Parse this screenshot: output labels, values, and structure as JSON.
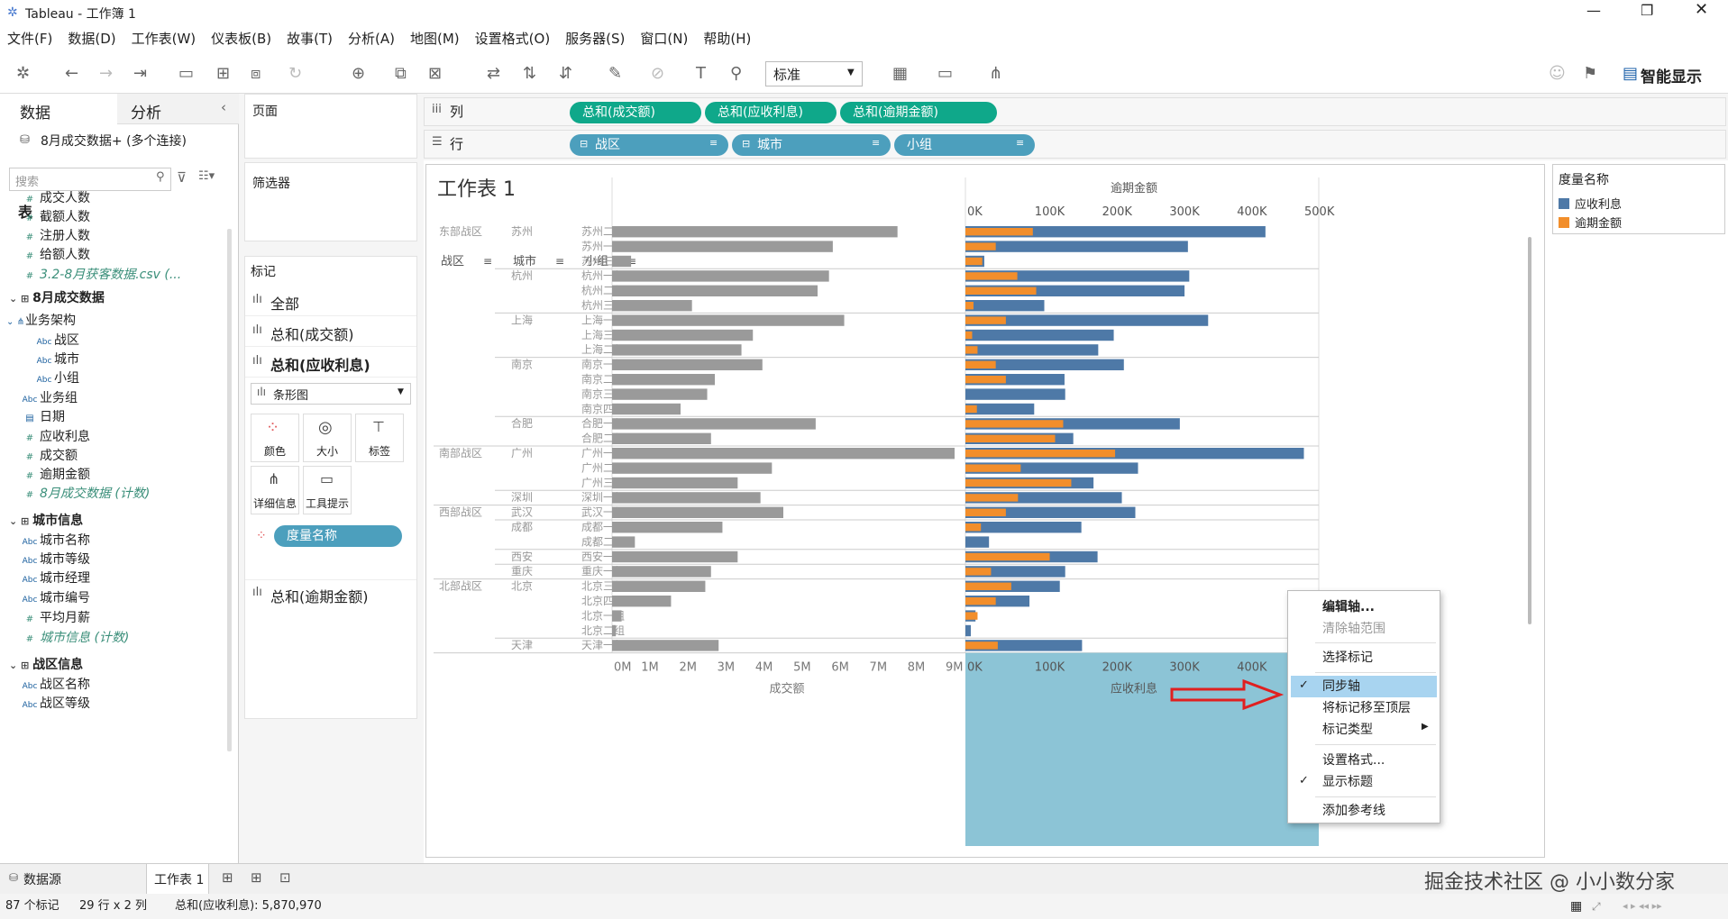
{
  "window": {
    "title": "Tableau - 工作簿 1"
  },
  "menu": [
    "文件(F)",
    "数据(D)",
    "工作表(W)",
    "仪表板(B)",
    "故事(T)",
    "分析(A)",
    "地图(M)",
    "设置格式(O)",
    "服务器(S)",
    "窗口(N)",
    "帮助(H)"
  ],
  "toolbar": {
    "fit_value": "标准",
    "show_me_label": "智能显示"
  },
  "left": {
    "tab_data": "数据",
    "tab_analysis": "分析",
    "connection": "8月成交数据+ (多个连接)",
    "search_placeholder": "搜索",
    "tables_header": "表",
    "fields": [
      {
        "label": "成交人数",
        "type": "measure",
        "indent": 44
      },
      {
        "label": "截额人数",
        "type": "measure",
        "indent": 44
      },
      {
        "label": "注册人数",
        "type": "measure",
        "indent": 44
      },
      {
        "label": "给额人数",
        "type": "measure",
        "indent": 44
      },
      {
        "label": "3.2-8月获客数据.csv (...",
        "type": "measure-italic",
        "indent": 44
      },
      {
        "label": "8月成交数据",
        "type": "section",
        "indent": 10
      },
      {
        "label": "业务架构",
        "type": "hier",
        "indent": 28
      },
      {
        "label": "战区",
        "type": "dim",
        "indent": 60
      },
      {
        "label": "城市",
        "type": "dim",
        "indent": 60
      },
      {
        "label": "小组",
        "type": "dim",
        "indent": 60
      },
      {
        "label": "业务组",
        "type": "dim",
        "indent": 44
      },
      {
        "label": "日期",
        "type": "date",
        "indent": 44
      },
      {
        "label": "应收利息",
        "type": "measure",
        "indent": 44
      },
      {
        "label": "成交额",
        "type": "measure",
        "indent": 44
      },
      {
        "label": "逾期金额",
        "type": "measure",
        "indent": 44
      },
      {
        "label": "8月成交数据 (计数)",
        "type": "measure-italic",
        "indent": 44
      },
      {
        "label": "城市信息",
        "type": "section",
        "indent": 10
      },
      {
        "label": "城市名称",
        "type": "dim",
        "indent": 44
      },
      {
        "label": "城市等级",
        "type": "dim",
        "indent": 44
      },
      {
        "label": "城市经理",
        "type": "dim",
        "indent": 44
      },
      {
        "label": "城市编号",
        "type": "dim",
        "indent": 44
      },
      {
        "label": "平均月薪",
        "type": "measure",
        "indent": 44
      },
      {
        "label": "城市信息 (计数)",
        "type": "measure-italic",
        "indent": 44
      },
      {
        "label": "战区信息",
        "type": "section",
        "indent": 10
      },
      {
        "label": "战区名称",
        "type": "dim",
        "indent": 44
      },
      {
        "label": "战区等级",
        "type": "dim",
        "indent": 44
      }
    ]
  },
  "cards": {
    "pages": "页面",
    "filters": "筛选器",
    "marks": "标记",
    "marks_all": "全部",
    "marks_m1": "总和(成交额)",
    "marks_m2": "总和(应收利息)",
    "marks_m3": "总和(逾期金额)",
    "mark_type": "条形图",
    "btn_color": "颜色",
    "btn_size": "大小",
    "btn_label": "标签",
    "btn_detail": "详细信息",
    "btn_tooltip": "工具提示",
    "measure_names_pill": "度量名称"
  },
  "shelves": {
    "columns_label": "列",
    "rows_label": "行",
    "columns": [
      "总和(成交额)",
      "总和(应收利息)",
      "总和(逾期金额)"
    ],
    "rows": [
      "战区",
      "城市",
      "小组"
    ]
  },
  "view": {
    "title": "工作表 1",
    "header_region": "战区",
    "header_city": "城市",
    "header_group": "小组"
  },
  "chart_data": {
    "type": "bar",
    "title": "工作表 1",
    "colors": {
      "gray": "#9a9a9a",
      "interest": "#4e79a7",
      "overdue": "#f28e2b"
    },
    "left_axis": {
      "label": "成交额",
      "ticks": [
        "0M",
        "1M",
        "2M",
        "3M",
        "4M",
        "5M",
        "6M",
        "7M",
        "8M",
        "9M"
      ],
      "range": [
        0,
        9
      ]
    },
    "right_axis": {
      "label": "应收利息",
      "top_label": "逾期金额",
      "ticks": [
        "0K",
        "100K",
        "200K",
        "300K",
        "400K",
        "500K"
      ],
      "range": [
        0,
        500
      ]
    },
    "rows": [
      {
        "region": "东部战区",
        "city": "苏州",
        "group": "苏州二组",
        "deal": 7.5,
        "interest": 445,
        "overdue": 100
      },
      {
        "region": "",
        "city": "",
        "group": "苏州一组",
        "deal": 5.8,
        "interest": 330,
        "overdue": 45
      },
      {
        "region": "",
        "city": "",
        "group": "苏州三组",
        "deal": 0.5,
        "interest": 28,
        "overdue": 25
      },
      {
        "region": "",
        "city": "杭州",
        "group": "杭州一组",
        "deal": 5.7,
        "interest": 332,
        "overdue": 77
      },
      {
        "region": "",
        "city": "",
        "group": "杭州二组",
        "deal": 5.4,
        "interest": 325,
        "overdue": 105
      },
      {
        "region": "",
        "city": "",
        "group": "杭州三组",
        "deal": 2.1,
        "interest": 117,
        "overdue": 12
      },
      {
        "region": "",
        "city": "上海",
        "group": "上海一组",
        "deal": 6.1,
        "interest": 360,
        "overdue": 60
      },
      {
        "region": "",
        "city": "",
        "group": "上海三组",
        "deal": 3.7,
        "interest": 220,
        "overdue": 10
      },
      {
        "region": "",
        "city": "",
        "group": "上海二组",
        "deal": 3.4,
        "interest": 197,
        "overdue": 18
      },
      {
        "region": "",
        "city": "南京",
        "group": "南京一组",
        "deal": 3.95,
        "interest": 235,
        "overdue": 45
      },
      {
        "region": "",
        "city": "",
        "group": "南京二组",
        "deal": 2.7,
        "interest": 147,
        "overdue": 60
      },
      {
        "region": "",
        "city": "",
        "group": "南京三组",
        "deal": 2.5,
        "interest": 148,
        "overdue": 0
      },
      {
        "region": "",
        "city": "",
        "group": "南京四组",
        "deal": 1.8,
        "interest": 102,
        "overdue": 17
      },
      {
        "region": "",
        "city": "合肥",
        "group": "合肥一组",
        "deal": 5.35,
        "interest": 318,
        "overdue": 145
      },
      {
        "region": "",
        "city": "",
        "group": "合肥二组",
        "deal": 2.6,
        "interest": 160,
        "overdue": 133
      },
      {
        "region": "南部战区",
        "city": "广州",
        "group": "广州一组",
        "deal": 9.0,
        "interest": 502,
        "overdue": 222
      },
      {
        "region": "",
        "city": "",
        "group": "广州二组",
        "deal": 4.2,
        "interest": 256,
        "overdue": 82
      },
      {
        "region": "",
        "city": "",
        "group": "广州三组",
        "deal": 3.3,
        "interest": 190,
        "overdue": 157
      },
      {
        "region": "",
        "city": "深圳",
        "group": "深圳一组",
        "deal": 3.9,
        "interest": 232,
        "overdue": 78
      },
      {
        "region": "西部战区",
        "city": "武汉",
        "group": "武汉一组",
        "deal": 4.5,
        "interest": 252,
        "overdue": 60
      },
      {
        "region": "",
        "city": "成都",
        "group": "成都一组",
        "deal": 2.9,
        "interest": 172,
        "overdue": 23
      },
      {
        "region": "",
        "city": "",
        "group": "成都二组",
        "deal": 0.6,
        "interest": 35,
        "overdue": 0
      },
      {
        "region": "",
        "city": "西安",
        "group": "西安一组",
        "deal": 3.3,
        "interest": 196,
        "overdue": 125
      },
      {
        "region": "",
        "city": "重庆",
        "group": "重庆一组",
        "deal": 2.6,
        "interest": 148,
        "overdue": 38
      },
      {
        "region": "北部战区",
        "city": "北京",
        "group": "北京三组",
        "deal": 2.45,
        "interest": 140,
        "overdue": 68
      },
      {
        "region": "",
        "city": "",
        "group": "北京四组",
        "deal": 1.55,
        "interest": 95,
        "overdue": 45
      },
      {
        "region": "",
        "city": "",
        "group": "北京一组",
        "deal": 0.25,
        "interest": 15,
        "overdue": 18
      },
      {
        "region": "",
        "city": "",
        "group": "北京二组",
        "deal": 0.1,
        "interest": 8,
        "overdue": 0
      },
      {
        "region": "",
        "city": "天津",
        "group": "天津一组",
        "deal": 2.8,
        "interest": 173,
        "overdue": 48
      }
    ]
  },
  "legend": {
    "title": "度量名称",
    "items": [
      {
        "label": "应收利息",
        "color": "#4e79a7"
      },
      {
        "label": "逾期金额",
        "color": "#f28e2b"
      }
    ]
  },
  "context_menu": {
    "items": [
      {
        "label": "编辑轴...",
        "state": "bold"
      },
      {
        "label": "清除轴范围",
        "state": "disabled"
      },
      {
        "label": "选择标记",
        "state": "normal"
      },
      {
        "label": "同步轴",
        "state": "checked-highlight"
      },
      {
        "label": "将标记移至顶层",
        "state": "normal"
      },
      {
        "label": "标记类型",
        "state": "submenu"
      },
      {
        "label": "设置格式...",
        "state": "normal"
      },
      {
        "label": "显示标题",
        "state": "checked"
      },
      {
        "label": "添加参考线",
        "state": "normal"
      }
    ]
  },
  "tabs": {
    "datasource": "数据源",
    "sheet": "工作表 1"
  },
  "status": {
    "marks": "87 个标记",
    "rows_cols": "29 行 x 2 列",
    "sum": "总和(应收利息): 5,870,970"
  },
  "watermark": "掘金技术社区 @ 小小数分家"
}
